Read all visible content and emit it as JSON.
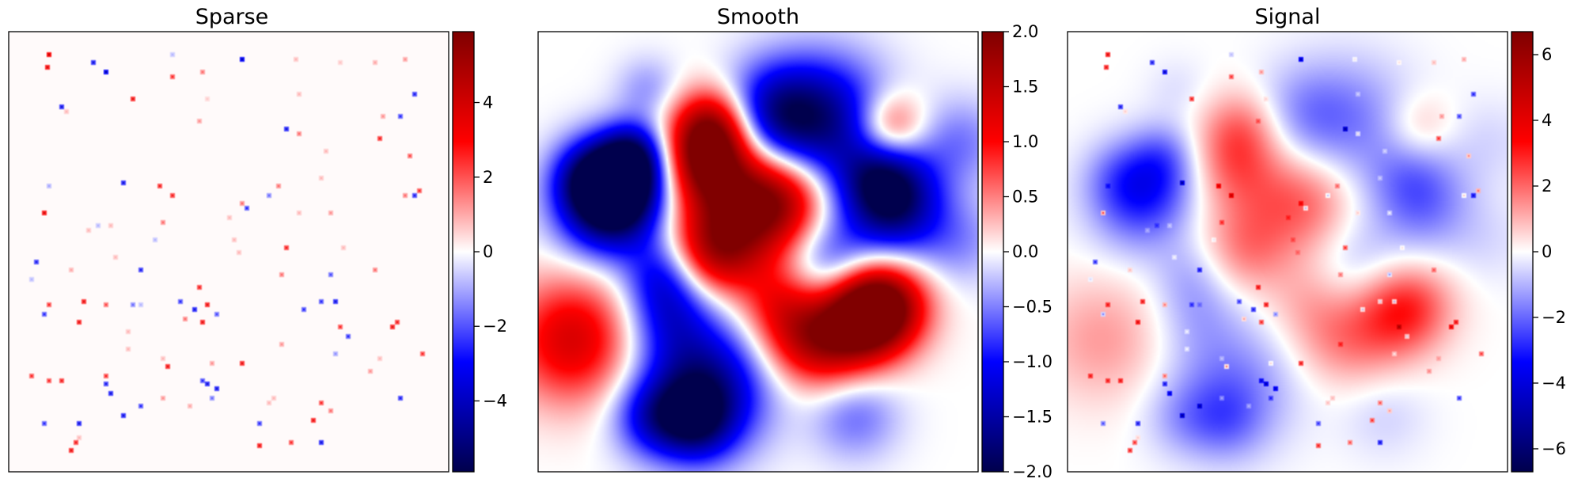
{
  "chart_data": [
    {
      "type": "heatmap",
      "title": "Sparse",
      "colormap": "seismic",
      "colorbar": {
        "ticks": [
          -4,
          -2,
          0,
          2,
          4
        ],
        "tick_labels": [
          "−4",
          "−2",
          "0",
          "2",
          "4"
        ],
        "range": [
          -5.9,
          5.9
        ]
      },
      "axes": {
        "x_ticks": false,
        "y_ticks": false
      },
      "field": "sparse point impulses of random sign and magnitude",
      "points": [
        [
          0.09,
          0.05,
          5
        ],
        [
          0.085,
          0.08,
          4.5
        ],
        [
          0.19,
          0.07,
          -4
        ],
        [
          0.22,
          0.09,
          -5
        ],
        [
          0.37,
          0.05,
          -1
        ],
        [
          0.53,
          0.06,
          -5
        ],
        [
          0.65,
          0.06,
          1
        ],
        [
          0.75,
          0.07,
          0.8
        ],
        [
          0.83,
          0.07,
          1.2
        ],
        [
          0.9,
          0.06,
          1.5
        ],
        [
          0.37,
          0.1,
          3
        ],
        [
          0.44,
          0.09,
          2
        ],
        [
          0.28,
          0.15,
          4
        ],
        [
          0.12,
          0.17,
          -4
        ],
        [
          0.13,
          0.18,
          1
        ],
        [
          0.45,
          0.15,
          0.7
        ],
        [
          0.92,
          0.14,
          -3.5
        ],
        [
          0.89,
          0.19,
          -3
        ],
        [
          0.66,
          0.14,
          1
        ],
        [
          0.85,
          0.19,
          1.5
        ],
        [
          0.43,
          0.2,
          1.5
        ],
        [
          0.63,
          0.22,
          -4
        ],
        [
          0.66,
          0.23,
          2
        ],
        [
          0.72,
          0.27,
          1
        ],
        [
          0.84,
          0.24,
          3.5
        ],
        [
          0.91,
          0.28,
          2.5
        ],
        [
          0.71,
          0.33,
          1
        ],
        [
          0.26,
          0.34,
          -4
        ],
        [
          0.34,
          0.35,
          3.5
        ],
        [
          0.37,
          0.37,
          3.5
        ],
        [
          0.09,
          0.35,
          -1.2
        ],
        [
          0.61,
          0.35,
          2
        ],
        [
          0.53,
          0.39,
          2
        ],
        [
          0.54,
          0.4,
          -3
        ],
        [
          0.92,
          0.37,
          -3.5
        ],
        [
          0.93,
          0.36,
          3
        ],
        [
          0.9,
          0.37,
          2
        ],
        [
          0.59,
          0.37,
          -2
        ],
        [
          0.08,
          0.41,
          4.5
        ],
        [
          0.2,
          0.44,
          -1
        ],
        [
          0.35,
          0.43,
          2
        ],
        [
          0.5,
          0.42,
          1
        ],
        [
          0.66,
          0.41,
          1
        ],
        [
          0.73,
          0.41,
          1.5
        ],
        [
          0.18,
          0.45,
          1
        ],
        [
          0.23,
          0.44,
          1
        ],
        [
          0.33,
          0.47,
          -1
        ],
        [
          0.51,
          0.47,
          1
        ],
        [
          0.63,
          0.49,
          3.5
        ],
        [
          0.24,
          0.51,
          1
        ],
        [
          0.52,
          0.5,
          1
        ],
        [
          0.06,
          0.52,
          -3.5
        ],
        [
          0.76,
          0.49,
          1
        ],
        [
          0.14,
          0.54,
          1.2
        ],
        [
          0.3,
          0.54,
          -3.5
        ],
        [
          0.83,
          0.54,
          2
        ],
        [
          0.05,
          0.56,
          -1
        ],
        [
          0.62,
          0.55,
          2
        ],
        [
          0.73,
          0.55,
          -2.5
        ],
        [
          0.43,
          0.58,
          3.5
        ],
        [
          0.09,
          0.62,
          3
        ],
        [
          0.17,
          0.61,
          4
        ],
        [
          0.08,
          0.64,
          -3
        ],
        [
          0.22,
          0.62,
          2.5
        ],
        [
          0.28,
          0.62,
          -2
        ],
        [
          0.39,
          0.61,
          -3
        ],
        [
          0.42,
          0.63,
          -4
        ],
        [
          0.45,
          0.62,
          4
        ],
        [
          0.71,
          0.61,
          -3
        ],
        [
          0.74,
          0.61,
          -4
        ],
        [
          0.67,
          0.63,
          -3
        ],
        [
          0.16,
          0.66,
          4
        ],
        [
          0.3,
          0.62,
          -1
        ],
        [
          0.27,
          0.68,
          1
        ],
        [
          0.4,
          0.65,
          2
        ],
        [
          0.44,
          0.66,
          4
        ],
        [
          0.47,
          0.64,
          -2.5
        ],
        [
          0.75,
          0.67,
          3
        ],
        [
          0.87,
          0.67,
          4
        ],
        [
          0.88,
          0.66,
          3.5
        ],
        [
          0.77,
          0.69,
          -3
        ],
        [
          0.62,
          0.71,
          1.5
        ],
        [
          0.74,
          0.73,
          -1.5
        ],
        [
          0.84,
          0.74,
          1
        ],
        [
          0.27,
          0.72,
          1
        ],
        [
          0.35,
          0.74,
          1
        ],
        [
          0.94,
          0.73,
          3
        ],
        [
          0.36,
          0.76,
          4
        ],
        [
          0.46,
          0.75,
          1.5
        ],
        [
          0.53,
          0.75,
          4
        ],
        [
          0.82,
          0.77,
          1.5
        ],
        [
          0.05,
          0.78,
          3
        ],
        [
          0.09,
          0.79,
          3
        ],
        [
          0.12,
          0.79,
          3.5
        ],
        [
          0.22,
          0.78,
          3
        ],
        [
          0.22,
          0.8,
          -3.5
        ],
        [
          0.44,
          0.79,
          -3
        ],
        [
          0.45,
          0.8,
          -4
        ],
        [
          0.47,
          0.81,
          -4
        ],
        [
          0.23,
          0.82,
          -4
        ],
        [
          0.3,
          0.85,
          -3
        ],
        [
          0.46,
          0.83,
          -2
        ],
        [
          0.35,
          0.83,
          1.5
        ],
        [
          0.6,
          0.83,
          1
        ],
        [
          0.26,
          0.87,
          -4
        ],
        [
          0.41,
          0.85,
          1.2
        ],
        [
          0.59,
          0.84,
          1
        ],
        [
          0.71,
          0.84,
          3
        ],
        [
          0.73,
          0.86,
          2
        ],
        [
          0.89,
          0.83,
          -3.5
        ],
        [
          0.08,
          0.89,
          -3
        ],
        [
          0.16,
          0.89,
          -4
        ],
        [
          0.15,
          0.93,
          3.5
        ],
        [
          0.57,
          0.89,
          -3
        ],
        [
          0.69,
          0.88,
          4
        ],
        [
          0.64,
          0.93,
          3
        ],
        [
          0.71,
          0.93,
          -4
        ],
        [
          0.14,
          0.95,
          4
        ],
        [
          0.57,
          0.94,
          4
        ],
        [
          0.16,
          0.92,
          1
        ]
      ]
    },
    {
      "type": "heatmap",
      "title": "Smooth",
      "colormap": "seismic",
      "colorbar": {
        "ticks": [
          -2,
          -1.5,
          -1,
          -0.5,
          0,
          0.5,
          1,
          1.5,
          2
        ],
        "tick_labels": [
          "−2.0",
          "−1.5",
          "−1.0",
          "−0.5",
          "0.0",
          "0.5",
          "1.0",
          "1.5",
          "2.0"
        ],
        "range": [
          -2,
          2
        ]
      },
      "axes": {
        "x_ticks": false,
        "y_ticks": false
      },
      "field": "sum of gaussian blobs",
      "blobs": [
        [
          0.38,
          0.29,
          0.075,
          1.9
        ],
        [
          0.4,
          0.21,
          0.06,
          1.2
        ],
        [
          0.48,
          0.41,
          0.1,
          1.4
        ],
        [
          0.55,
          0.38,
          0.07,
          1.0
        ],
        [
          0.4,
          0.5,
          0.07,
          1.2
        ],
        [
          0.75,
          0.64,
          0.07,
          1.6
        ],
        [
          0.79,
          0.62,
          0.07,
          1.4
        ],
        [
          0.67,
          0.7,
          0.08,
          1.2
        ],
        [
          0.59,
          0.69,
          0.07,
          0.8
        ],
        [
          0.08,
          0.7,
          0.1,
          1.3
        ],
        [
          0.8,
          0.22,
          0.055,
          1.1
        ],
        [
          0.54,
          0.61,
          0.06,
          0.6
        ],
        [
          0.16,
          0.4,
          0.08,
          -1.9
        ],
        [
          0.21,
          0.34,
          0.07,
          -1.3
        ],
        [
          0.12,
          0.33,
          0.06,
          -1.2
        ],
        [
          0.65,
          0.2,
          0.1,
          -1.5
        ],
        [
          0.53,
          0.19,
          0.08,
          -1.2
        ],
        [
          0.81,
          0.4,
          0.08,
          -1.5
        ],
        [
          0.78,
          0.33,
          0.07,
          -1.1
        ],
        [
          0.37,
          0.81,
          0.1,
          -1.8
        ],
        [
          0.36,
          0.89,
          0.06,
          -1.0
        ],
        [
          0.26,
          0.88,
          0.06,
          -0.8
        ],
        [
          0.3,
          0.64,
          0.07,
          -0.9
        ],
        [
          0.66,
          0.52,
          0.07,
          -0.8
        ],
        [
          0.28,
          0.55,
          0.06,
          -0.8
        ],
        [
          0.72,
          0.87,
          0.07,
          -0.6
        ],
        [
          0.22,
          0.28,
          0.055,
          -1.2
        ],
        [
          0.25,
          0.13,
          0.05,
          -0.4
        ],
        [
          0.96,
          0.48,
          0.07,
          -0.4
        ],
        [
          0.96,
          0.25,
          0.07,
          -0.5
        ]
      ]
    },
    {
      "type": "heatmap",
      "title": "Signal",
      "colormap": "seismic",
      "colorbar": {
        "ticks": [
          -6,
          -4,
          -2,
          0,
          2,
          4,
          6
        ],
        "tick_labels": [
          "−6",
          "−4",
          "−2",
          "0",
          "2",
          "4",
          "6"
        ],
        "range": [
          -6.7,
          6.7
        ]
      },
      "axes": {
        "x_ticks": false,
        "y_ticks": false
      },
      "field": "Sparse + Smooth"
    }
  ]
}
